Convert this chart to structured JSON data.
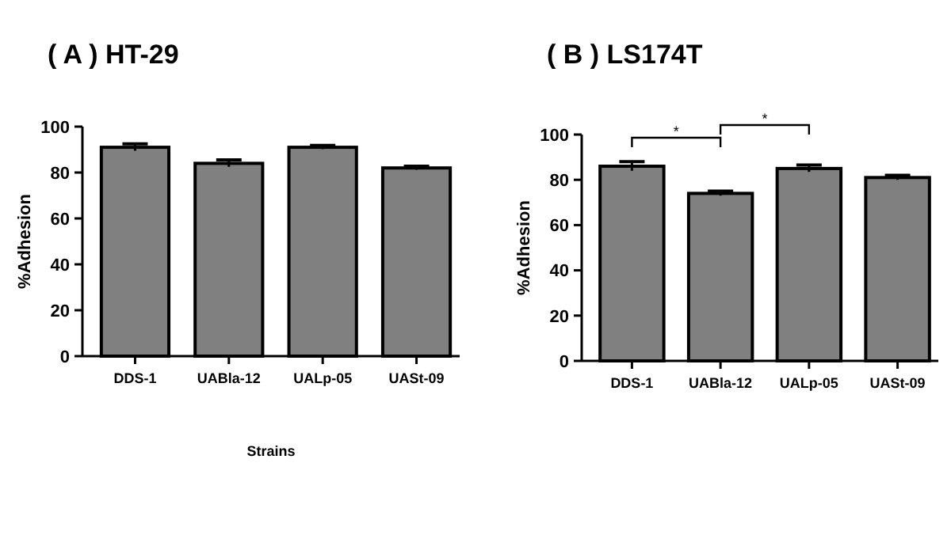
{
  "chart_data": [
    {
      "type": "bar",
      "title": "( A ) HT-29",
      "ylabel": "%Adhesion",
      "xlabel": "Strains",
      "categories": [
        "DDS-1",
        "UABla-12",
        "UALp-05",
        "UASt-09"
      ],
      "values": [
        91,
        84,
        91,
        82
      ],
      "errors": [
        1.5,
        1.5,
        0.8,
        0.8
      ],
      "color": "#808080",
      "ylim": [
        0,
        100
      ],
      "yticks": [
        0,
        20,
        40,
        60,
        80,
        100
      ],
      "grid": false
    },
    {
      "type": "bar",
      "title": "( B ) LS174T",
      "ylabel": "%Adhesion",
      "categories": [
        "DDS-1",
        "UABla-12",
        "UALp-05",
        "UASt-09"
      ],
      "values": [
        86,
        74,
        85,
        81
      ],
      "errors": [
        2,
        1,
        1.5,
        1
      ],
      "color": "#808080",
      "ylim": [
        0,
        100
      ],
      "yticks": [
        0,
        20,
        40,
        60,
        80,
        100
      ],
      "grid": false,
      "annotations": [
        "*",
        "*"
      ]
    }
  ]
}
